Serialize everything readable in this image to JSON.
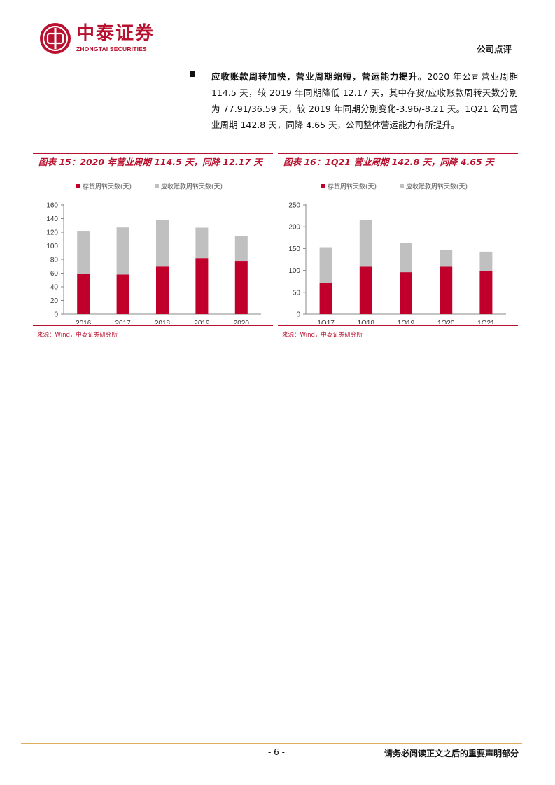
{
  "header": {
    "logo_cn": "中泰证券",
    "logo_en": "ZHONGTAI SECURITIES",
    "report_type": "公司点评"
  },
  "body": {
    "bullet_heading": "应收账款周转加快，营业周期缩短，营运能力提升。",
    "bullet_text": "2020 年公司营业周期 114.5 天，较 2019 年同期降低 12.17 天，其中存货/应收账款周转天数分别为 77.91/36.59 天，较 2019 年同期分别变化-3.96/-8.21 天。1Q21 公司营业周期 142.8 天，同降 4.65 天，公司整体营运能力有所提升。"
  },
  "charts": [
    {
      "title": "图表 15：2020 年营业周期 114.5 天，同降 12.17 天",
      "source": "来源：Wind，中泰证券研究所"
    },
    {
      "title": "图表 16：1Q21 营业周期 142.8 天，同降 4.65 天",
      "source": "来源：Wind，中泰证券研究所"
    }
  ],
  "chart_data": [
    {
      "type": "bar",
      "stacked": true,
      "categories": [
        "2016",
        "2017",
        "2018",
        "2019",
        "2020"
      ],
      "series": [
        {
          "name": "存货周转天数(天)",
          "color": "#c0002a",
          "values": [
            59.5,
            58,
            70.5,
            81.87,
            77.91
          ]
        },
        {
          "name": "应收账款周转天数(天)",
          "color": "#c0c0c0",
          "values": [
            62.5,
            69,
            67.5,
            44.8,
            36.59
          ]
        }
      ],
      "ylim": [
        0,
        160
      ],
      "yticks": [
        0,
        20,
        40,
        60,
        80,
        100,
        120,
        140,
        160
      ],
      "legend": "top",
      "grid": false
    },
    {
      "type": "bar",
      "stacked": true,
      "categories": [
        "1Q17",
        "1Q18",
        "1Q19",
        "1Q20",
        "1Q21"
      ],
      "series": [
        {
          "name": "存货周转天数(天)",
          "color": "#c0002a",
          "values": [
            71,
            110,
            96,
            110,
            99
          ]
        },
        {
          "name": "应收账款周转天数(天)",
          "color": "#c0c0c0",
          "values": [
            82,
            106,
            66,
            37.45,
            43.8
          ]
        }
      ],
      "ylim": [
        0,
        250
      ],
      "yticks": [
        0,
        50,
        100,
        150,
        200,
        250
      ],
      "legend": "top",
      "grid": false
    }
  ],
  "footer": {
    "page_number": "- 6 -",
    "disclaimer": "请务必阅读正文之后的重要声明部分"
  }
}
